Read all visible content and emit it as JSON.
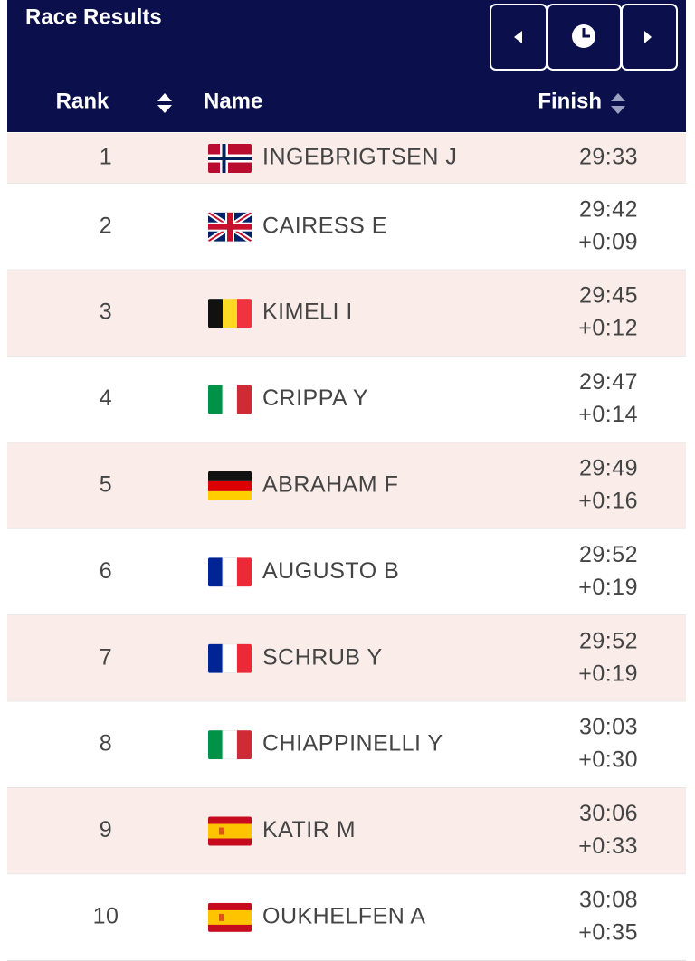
{
  "header": {
    "title": "Race Results"
  },
  "table": {
    "columns": [
      "Rank",
      "Name",
      "Finish"
    ],
    "rows": [
      {
        "rank": "1",
        "name": "INGEBRIGTSEN J",
        "finish": "29:33"
      },
      {
        "rank": "2",
        "name": "CAIRESS E",
        "finish": "29:42",
        "gap": "+0:09"
      },
      {
        "rank": "3",
        "name": "KIMELI I",
        "finish": "29:45",
        "gap": "+0:12"
      },
      {
        "rank": "4",
        "name": "CRIPPA Y",
        "finish": "29:47",
        "gap": "+0:14"
      },
      {
        "rank": "5",
        "name": "ABRAHAM F",
        "finish": "29:49",
        "gap": "+0:16"
      },
      {
        "rank": "6",
        "name": "AUGUSTO B",
        "finish": "29:52",
        "gap": "+0:19"
      },
      {
        "rank": "7",
        "name": "SCHRUB Y",
        "finish": "29:52",
        "gap": "+0:19"
      },
      {
        "rank": "8",
        "name": "CHIAPPINELLI Y",
        "finish": "30:03",
        "gap": "+0:30"
      },
      {
        "rank": "9",
        "name": "KATIR M",
        "finish": "30:06",
        "gap": "+0:33"
      },
      {
        "rank": "10",
        "name": "OUKHELFEN A",
        "finish": "30:08",
        "gap": "+0:35"
      }
    ]
  }
}
